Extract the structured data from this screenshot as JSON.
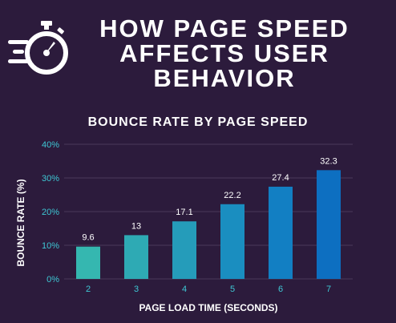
{
  "header": {
    "title_lines": [
      "HOW PAGE SPEED",
      "AFFECTS USER",
      "BEHAVIOR"
    ],
    "icon": "stopwatch-speed-icon"
  },
  "colors": {
    "background": "#2c1b3c",
    "text": "#ffffff",
    "axis_text": "#3ec7d4",
    "grid": "#4a3a5a",
    "bars": [
      "#35b7b0",
      "#2eaab4",
      "#259cba",
      "#1a8ec0",
      "#127fc3",
      "#0d6fc1"
    ]
  },
  "chart_data": {
    "type": "bar",
    "title": "BOUNCE RATE BY PAGE SPEED",
    "xlabel": "PAGE LOAD TIME (SECONDS)",
    "ylabel": "BOUNCE RATE (%)",
    "categories": [
      "2",
      "3",
      "4",
      "5",
      "6",
      "7"
    ],
    "values": [
      9.6,
      13,
      17.1,
      22.2,
      27.4,
      32.3
    ],
    "value_labels": [
      "9.6",
      "13",
      "17.1",
      "22.2",
      "27.4",
      "32.3"
    ],
    "ylim": [
      0,
      40
    ],
    "yticks": [
      0,
      10,
      20,
      30,
      40
    ],
    "ytick_labels": [
      "0%",
      "10%",
      "20%",
      "30%",
      "40%"
    ],
    "grid": true
  }
}
